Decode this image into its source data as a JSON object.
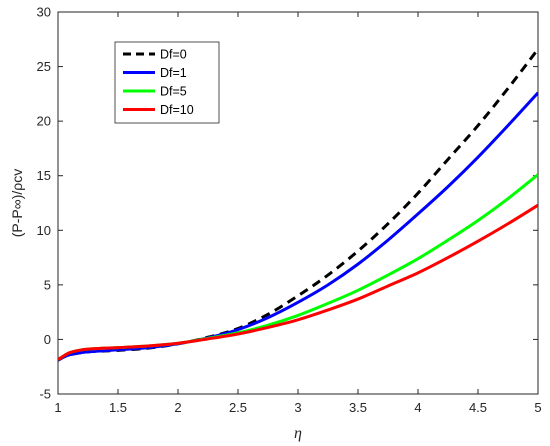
{
  "chart_data": {
    "type": "line",
    "title": "",
    "xlabel": "η",
    "ylabel": "(P-P∞)/ρcv",
    "xlim": [
      1,
      5
    ],
    "ylim": [
      -5,
      30
    ],
    "x_ticks": [
      "1",
      "1.5",
      "2",
      "2.5",
      "3",
      "3.5",
      "4",
      "4.5",
      "5"
    ],
    "y_ticks": [
      "-5",
      "0",
      "5",
      "10",
      "15",
      "20",
      "25",
      "30"
    ],
    "grid": false,
    "legend_position": "top-left",
    "x": [
      1.0,
      1.05,
      1.1,
      1.2,
      1.3,
      1.5,
      1.75,
      2.0,
      2.25,
      2.5,
      2.75,
      3.0,
      3.25,
      3.5,
      3.75,
      4.0,
      4.25,
      4.5,
      4.75,
      5.0
    ],
    "series": [
      {
        "name": "Df=0",
        "color": "#000000",
        "dash": true,
        "values": [
          -1.9,
          -1.6,
          -1.4,
          -1.2,
          -1.1,
          -1.0,
          -0.8,
          -0.4,
          0.2,
          1.0,
          2.3,
          4.0,
          5.9,
          8.1,
          10.6,
          13.4,
          16.5,
          19.6,
          23.0,
          26.6
        ]
      },
      {
        "name": "Df=1",
        "color": "#0000ff",
        "dash": false,
        "values": [
          -1.9,
          -1.6,
          -1.4,
          -1.2,
          -1.1,
          -0.95,
          -0.75,
          -0.4,
          0.15,
          0.9,
          2.0,
          3.4,
          5.0,
          6.9,
          9.1,
          11.5,
          14.0,
          16.7,
          19.6,
          22.6
        ]
      },
      {
        "name": "Df=5",
        "color": "#00ff00",
        "dash": false,
        "values": [
          -1.85,
          -1.5,
          -1.2,
          -0.95,
          -0.85,
          -0.75,
          -0.6,
          -0.35,
          0.1,
          0.6,
          1.3,
          2.2,
          3.3,
          4.5,
          5.9,
          7.4,
          9.1,
          10.9,
          12.9,
          15.1
        ]
      },
      {
        "name": "Df=10",
        "color": "#ff0000",
        "dash": false,
        "values": [
          -1.85,
          -1.5,
          -1.2,
          -0.95,
          -0.85,
          -0.75,
          -0.6,
          -0.35,
          0.05,
          0.5,
          1.1,
          1.8,
          2.7,
          3.7,
          4.9,
          6.1,
          7.5,
          9.0,
          10.6,
          12.3
        ]
      }
    ]
  }
}
